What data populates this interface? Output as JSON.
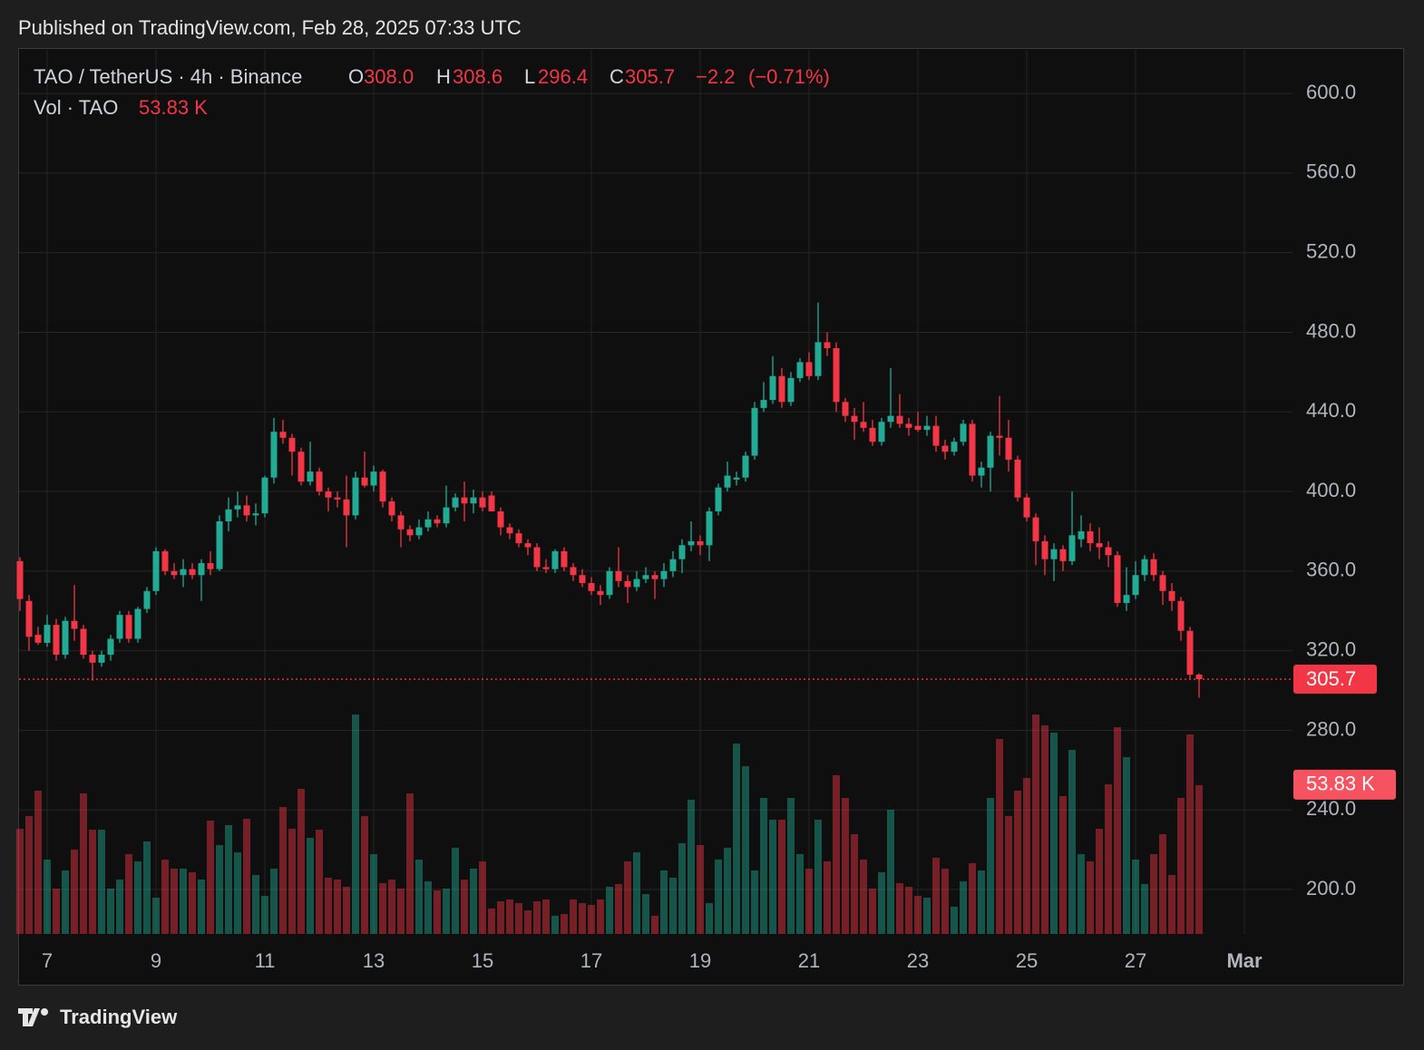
{
  "header": {
    "published": "Published on TradingView.com, Feb 28, 2025 07:33 UTC"
  },
  "footer": {
    "brand": "TradingView"
  },
  "chart_data": {
    "type": "candlestick",
    "symbol": "TAO / TetherUS · 4h · Binance",
    "legend": {
      "open": {
        "letter": "O",
        "value": 308.0,
        "label": "308.0"
      },
      "high": {
        "letter": "H",
        "value": 308.6,
        "label": "308.6"
      },
      "low": {
        "letter": "L",
        "value": 296.4,
        "label": "296.4"
      },
      "close": {
        "letter": "C",
        "value": 305.7,
        "label": "305.7"
      },
      "change": {
        "value": -2.2,
        "label": "−2.2"
      },
      "change_pct": {
        "value": -0.71,
        "label": "(−0.71%)"
      }
    },
    "volume_title": "Vol · TAO",
    "last_volume": {
      "value": 53830,
      "label": "53.83 K"
    },
    "last_price": {
      "value": 305.7,
      "label": "305.7"
    },
    "up_color": "#22ab94",
    "down_color": "#f23645",
    "grid": true,
    "categories": [
      null,
      null,
      null,
      "7",
      null,
      null,
      null,
      null,
      null,
      null,
      null,
      null,
      null,
      null,
      null,
      "9",
      null,
      null,
      null,
      null,
      null,
      null,
      null,
      null,
      null,
      null,
      null,
      "11",
      null,
      null,
      null,
      null,
      null,
      null,
      null,
      null,
      null,
      null,
      null,
      "13",
      null,
      null,
      null,
      null,
      null,
      null,
      null,
      null,
      null,
      null,
      null,
      "15",
      null,
      null,
      null,
      null,
      null,
      null,
      null,
      null,
      null,
      null,
      null,
      "17",
      null,
      null,
      null,
      null,
      null,
      null,
      null,
      null,
      null,
      null,
      null,
      "19",
      null,
      null,
      null,
      null,
      null,
      null,
      null,
      null,
      null,
      null,
      null,
      "21",
      null,
      null,
      null,
      null,
      null,
      null,
      null,
      null,
      null,
      null,
      null,
      "23",
      null,
      null,
      null,
      null,
      null,
      null,
      null,
      null,
      null,
      null,
      null,
      "25",
      null,
      null,
      null,
      null,
      null,
      null,
      null,
      null,
      null,
      null,
      null,
      "27",
      null,
      null,
      null,
      null,
      null,
      null,
      null,
      null,
      null,
      null,
      null,
      "Mar"
    ],
    "open": [
      365,
      345,
      328,
      324,
      333,
      318,
      335,
      331,
      318,
      314,
      318,
      326,
      338,
      326,
      341,
      350,
      370,
      360,
      358,
      361,
      358,
      364,
      361,
      385,
      391,
      393,
      388,
      389,
      407,
      430,
      427,
      420,
      405,
      410,
      400,
      397,
      396,
      388,
      407,
      403,
      410,
      395,
      388,
      381,
      378,
      382,
      386,
      384,
      392,
      397,
      394,
      397,
      398,
      390,
      382,
      379,
      374,
      372,
      362,
      361,
      370,
      362,
      358,
      354,
      350,
      348,
      360,
      355,
      352,
      356,
      358,
      356,
      360,
      366,
      373,
      375,
      373,
      390,
      402,
      406,
      407,
      418,
      442,
      446,
      458,
      445,
      457,
      465,
      458,
      475,
      472,
      445,
      438,
      435,
      432,
      425,
      435,
      438,
      434,
      433,
      431,
      433,
      423,
      420,
      425,
      434,
      408,
      412,
      428,
      427,
      416,
      397,
      387,
      375,
      366,
      371,
      365,
      376,
      380,
      374,
      372,
      368,
      344,
      348,
      358,
      366,
      358,
      350,
      345,
      330,
      308.0,
      null,
      null,
      null,
      null,
      null
    ],
    "high": [
      367,
      348,
      332,
      338,
      336,
      337,
      353,
      333,
      320,
      320,
      328,
      340,
      340,
      342,
      352,
      372,
      371,
      364,
      366,
      364,
      366,
      370,
      388,
      397,
      400,
      398,
      394,
      408,
      437,
      436,
      429,
      422,
      425,
      412,
      402,
      400,
      408,
      410,
      420,
      413,
      411,
      397,
      390,
      383,
      386,
      390,
      388,
      403,
      399,
      405,
      401,
      400,
      400,
      392,
      384,
      381,
      376,
      374,
      366,
      371,
      372,
      364,
      361,
      357,
      353,
      362,
      372,
      358,
      360,
      362,
      360,
      364,
      370,
      376,
      385,
      378,
      392,
      404,
      415,
      410,
      420,
      445,
      455,
      468,
      462,
      460,
      467,
      470,
      495,
      480,
      475,
      447,
      442,
      445,
      436,
      437,
      462,
      449,
      437,
      440,
      438,
      438,
      426,
      427,
      436,
      436,
      415,
      430,
      448,
      436,
      418,
      399,
      389,
      378,
      374,
      373,
      400,
      388,
      384,
      382,
      375,
      370,
      362,
      365,
      368,
      369,
      360,
      354,
      347,
      332,
      308.6,
      null,
      null,
      null,
      null,
      null
    ],
    "low": [
      340,
      320,
      323,
      322,
      315,
      316,
      325,
      316,
      305,
      312,
      315,
      324,
      324,
      324,
      339,
      348,
      358,
      356,
      352,
      356,
      345,
      358,
      360,
      380,
      387,
      385,
      383,
      387,
      404,
      424,
      408,
      403,
      403,
      398,
      390,
      392,
      372,
      386,
      402,
      400,
      392,
      385,
      372,
      375,
      376,
      380,
      382,
      382,
      390,
      385,
      389,
      390,
      390,
      378,
      376,
      372,
      368,
      360,
      359,
      359,
      360,
      355,
      352,
      348,
      343,
      346,
      352,
      344,
      350,
      354,
      346,
      352,
      357,
      359,
      370,
      368,
      365,
      388,
      400,
      403,
      405,
      416,
      440,
      444,
      442,
      443,
      455,
      456,
      456,
      468,
      440,
      435,
      426,
      430,
      423,
      423,
      432,
      432,
      428,
      430,
      428,
      420,
      416,
      418,
      423,
      405,
      402,
      400,
      418,
      410,
      395,
      385,
      363,
      358,
      355,
      360,
      363,
      372,
      370,
      366,
      362,
      342,
      340,
      346,
      355,
      355,
      343,
      340,
      325,
      306,
      296.4,
      null,
      null,
      null,
      null,
      null
    ],
    "close": [
      346,
      327,
      324,
      333,
      318,
      335,
      331,
      318,
      314,
      318,
      326,
      338,
      326,
      341,
      350,
      370,
      360,
      358,
      361,
      358,
      364,
      361,
      385,
      391,
      393,
      388,
      389,
      407,
      430,
      427,
      420,
      405,
      410,
      400,
      397,
      396,
      388,
      407,
      403,
      410,
      395,
      388,
      381,
      378,
      382,
      386,
      384,
      392,
      397,
      394,
      397,
      392,
      390,
      382,
      379,
      374,
      372,
      362,
      361,
      370,
      362,
      358,
      354,
      350,
      348,
      360,
      355,
      352,
      356,
      358,
      356,
      360,
      366,
      373,
      375,
      373,
      390,
      402,
      408,
      407,
      418,
      442,
      446,
      458,
      445,
      457,
      465,
      458,
      475,
      472,
      445,
      438,
      435,
      432,
      425,
      435,
      438,
      434,
      432,
      431,
      433,
      423,
      420,
      425,
      434,
      408,
      412,
      428,
      427,
      416,
      397,
      387,
      375,
      366,
      371,
      365,
      378,
      380,
      374,
      372,
      368,
      344,
      348,
      358,
      366,
      358,
      350,
      345,
      330,
      308,
      305.7,
      null,
      null,
      null,
      null,
      null
    ],
    "volume": [
      38000,
      42640,
      51820,
      26900,
      16400,
      22960,
      30500,
      50840,
      37720,
      37720,
      16400,
      19680,
      28860,
      26240,
      33460,
      13120,
      26900,
      23620,
      23620,
      22300,
      19680,
      41000,
      32140,
      39360,
      29520,
      41660,
      21320,
      13780,
      23620,
      45920,
      38050,
      52480,
      34770,
      37720,
      20340,
      19680,
      17060,
      79380,
      42640,
      28860,
      18370,
      19680,
      16400,
      50840,
      26900,
      19020,
      15740,
      16400,
      31160,
      19680,
      23620,
      26240,
      9180,
      11810,
      12460,
      11150,
      8530,
      11810,
      12460,
      6560,
      7220,
      12460,
      11150,
      10500,
      12460,
      17060,
      18040,
      26240,
      29520,
      14430,
      6560,
      22960,
      20340,
      32800,
      48540,
      32140,
      11150,
      26900,
      31160,
      68880,
      60680,
      22960,
      49200,
      41330,
      41330,
      49200,
      28860,
      23620,
      41330,
      26240,
      57400,
      49200,
      36080,
      26900,
      16400,
      22300,
      44940,
      18370,
      17060,
      13780,
      13120,
      27550,
      23620,
      9840,
      19020,
      25580,
      22960,
      49200,
      70520,
      42640,
      51820,
      56420,
      79380,
      75440,
      72820,
      49860,
      66580,
      28860,
      26240,
      38050,
      54120,
      74780,
      63960,
      26900,
      18040,
      28860,
      36080,
      21320,
      49200,
      72160,
      53830,
      null,
      null,
      null,
      null,
      null
    ],
    "ylim": [
      177.7,
      621.9
    ],
    "yticks": [
      {
        "value": 200,
        "label": "200.0"
      },
      {
        "value": 240,
        "label": "240.0"
      },
      {
        "value": 280,
        "label": "280.0"
      },
      {
        "value": 320,
        "label": "320.0"
      },
      {
        "value": 360,
        "label": "360.0"
      },
      {
        "value": 400,
        "label": "400.0"
      },
      {
        "value": 440,
        "label": "440.0"
      },
      {
        "value": 480,
        "label": "480.0"
      },
      {
        "value": 520,
        "label": "520.0"
      },
      {
        "value": 560,
        "label": "560.0"
      },
      {
        "value": 600,
        "label": "600.0"
      }
    ]
  }
}
